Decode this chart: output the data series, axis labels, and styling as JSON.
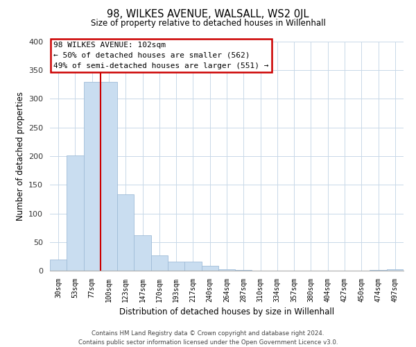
{
  "title": "98, WILKES AVENUE, WALSALL, WS2 0JL",
  "subtitle": "Size of property relative to detached houses in Willenhall",
  "xlabel": "Distribution of detached houses by size in Willenhall",
  "ylabel": "Number of detached properties",
  "bar_labels": [
    "30sqm",
    "53sqm",
    "77sqm",
    "100sqm",
    "123sqm",
    "147sqm",
    "170sqm",
    "193sqm",
    "217sqm",
    "240sqm",
    "264sqm",
    "287sqm",
    "310sqm",
    "334sqm",
    "357sqm",
    "380sqm",
    "404sqm",
    "427sqm",
    "450sqm",
    "474sqm",
    "497sqm"
  ],
  "bar_values": [
    19,
    201,
    330,
    330,
    133,
    62,
    27,
    16,
    16,
    8,
    2,
    1,
    0,
    0,
    0,
    0,
    0,
    0,
    0,
    1,
    2
  ],
  "bar_color": "#c9ddf0",
  "bar_edge_color": "#a0bcd8",
  "vline_bar_index": 3,
  "vline_color": "#cc0000",
  "ylim": [
    0,
    400
  ],
  "yticks": [
    0,
    50,
    100,
    150,
    200,
    250,
    300,
    350,
    400
  ],
  "annotation_title": "98 WILKES AVENUE: 102sqm",
  "annotation_line1": "← 50% of detached houses are smaller (562)",
  "annotation_line2": "49% of semi-detached houses are larger (551) →",
  "footer_line1": "Contains HM Land Registry data © Crown copyright and database right 2024.",
  "footer_line2": "Contains public sector information licensed under the Open Government Licence v3.0.",
  "background_color": "#ffffff",
  "grid_color": "#c8d8e8"
}
